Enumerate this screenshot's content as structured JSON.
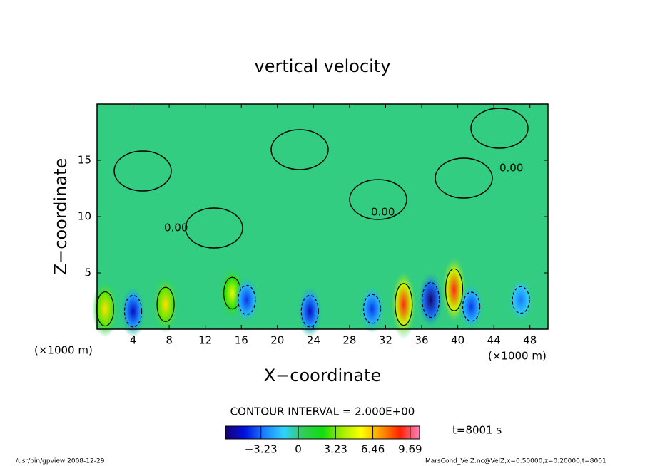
{
  "chart_data": {
    "type": "contour",
    "title": "vertical velocity",
    "x_label": "X−coordinate",
    "y_label": "Z−coordinate",
    "x_unit_labels": [
      "(×1000 m)",
      "(×1000 m)"
    ],
    "xlim": [
      0,
      50
    ],
    "xticks": [
      4,
      8,
      12,
      16,
      20,
      24,
      28,
      32,
      36,
      40,
      44,
      48
    ],
    "ylim": [
      0,
      20
    ],
    "yticks": [
      5,
      10,
      15
    ],
    "contour_interval_label": "CONTOUR INTERVAL = 2.000E+00",
    "time_label": "t=8001 s",
    "contour_labels": [
      "0.00",
      "0.00",
      "0.00"
    ],
    "colorbar": {
      "lim": [
        -6.3,
        10.5
      ],
      "ticks": [
        {
          "value": -3.23,
          "label": "−3.23"
        },
        0,
        3.23,
        6.46,
        9.69
      ],
      "colors": [
        "#1a0070",
        "#0010e0",
        "#1a80ff",
        "#30d0ff",
        "#33cc55",
        "#10dd10",
        "#a0ee00",
        "#ffff00",
        "#ff9900",
        "#ff2200",
        "#ff80c0"
      ]
    },
    "extrema": {
      "x": [
        0.9,
        4.0,
        7.6,
        15.0,
        16.6,
        23.6,
        30.5,
        34.0,
        37.0,
        39.6,
        41.5,
        47.0
      ],
      "z": [
        1.8,
        1.6,
        2.2,
        3.2,
        2.6,
        1.6,
        1.8,
        2.2,
        2.6,
        3.5,
        2.0,
        2.6
      ],
      "values": [
        6,
        -5,
        6,
        5,
        -4,
        -5,
        -4,
        9,
        -6.3,
        9,
        -4,
        -3
      ]
    },
    "footer_left": "/usr/bin/gpview   2008-12-29",
    "footer_right": "MarsCond_VelZ.nc@VelZ,x=0:50000,z=0:20000,t=8001"
  }
}
